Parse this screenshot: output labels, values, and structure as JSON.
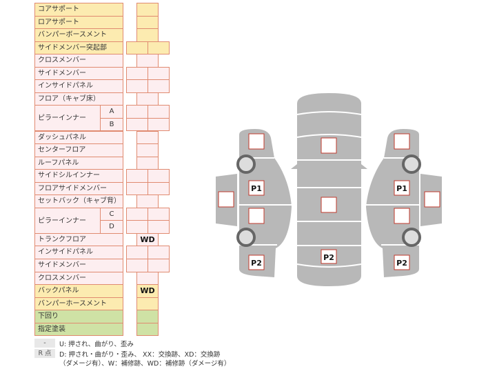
{
  "table": {
    "rows": [
      {
        "label": "コアサポート",
        "color": "y",
        "cells": 1
      },
      {
        "label": "ロアサポート",
        "color": "y",
        "cells": 1
      },
      {
        "label": "バンパーボースメント",
        "color": "y",
        "cells": 1
      },
      {
        "label": "サイドメンバー突起部",
        "color": "y",
        "cells": 2
      },
      {
        "label": "クロスメンバー",
        "color": "p",
        "cells": 1
      },
      {
        "label": "サイドメンバー",
        "color": "p",
        "cells": 2
      },
      {
        "label": "インサイドパネル",
        "color": "p",
        "cells": 2
      },
      {
        "label": "フロア（キャブ床）",
        "color": "p",
        "cells": 1
      },
      {
        "label": "ピラーインナー",
        "color": "p",
        "cells": 2,
        "sub": "A",
        "group": "ab"
      },
      {
        "label": "",
        "color": "p",
        "cells": 2,
        "sub": "B",
        "group": "ab2"
      },
      {
        "label": "ダッシュパネル",
        "color": "p",
        "cells": 1
      },
      {
        "label": "センターフロア",
        "color": "p",
        "cells": 1
      },
      {
        "label": "ルーフパネル",
        "color": "p",
        "cells": 1
      },
      {
        "label": "サイドシルインナー",
        "color": "p",
        "cells": 2
      },
      {
        "label": "フロアサイドメンバー",
        "color": "p",
        "cells": 2
      },
      {
        "label": "セットバック（キャブ背）",
        "color": "p",
        "cells": 1
      },
      {
        "label": "ピラーインナー",
        "color": "p",
        "cells": 2,
        "sub": "C",
        "group": "ab"
      },
      {
        "label": "",
        "color": "p",
        "cells": 2,
        "sub": "D",
        "group": "ab2"
      },
      {
        "label": "トランクフロア",
        "color": "p",
        "cells": 1,
        "value": "WD"
      },
      {
        "label": "インサイドパネル",
        "color": "p",
        "cells": 2
      },
      {
        "label": "サイドメンバー",
        "color": "p",
        "cells": 2
      },
      {
        "label": "クロスメンバー",
        "color": "p",
        "cells": 1
      },
      {
        "label": "バックパネル",
        "color": "y",
        "cells": 1,
        "value": "WD"
      },
      {
        "label": "バンパーホースメント",
        "color": "y",
        "cells": 1
      },
      {
        "label": "下回り",
        "color": "g",
        "cells": 1
      },
      {
        "label": "指定塗装",
        "color": "g",
        "cells": 1
      }
    ]
  },
  "legend": {
    "items": [
      {
        "key": "-",
        "text": "U: 押され、曲がり、歪み"
      },
      {
        "key": "R 点",
        "text": "D: 押され・曲がり・歪み、 XX：交換跡、XD：交換跡",
        "text2": "（ダメージ有）、W：補修跡、WD：補修跡（ダメージ有）"
      }
    ]
  },
  "diagram": {
    "labels": {
      "p1": "P1",
      "p2": "P2"
    }
  },
  "colors": {
    "body": "#b8b8b8",
    "border": "#e08a70",
    "box_border": "#c0392b",
    "yellow": "#fcebb0",
    "pink": "#fdeef0",
    "green": "#cfe2a5"
  }
}
